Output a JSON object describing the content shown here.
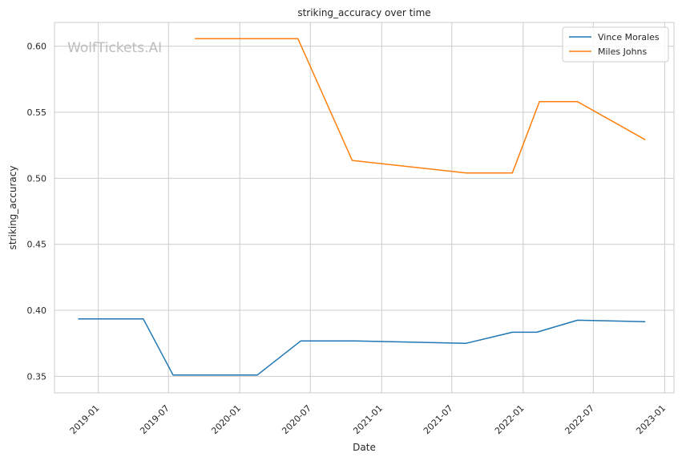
{
  "chart_data": {
    "type": "line",
    "title": "striking_accuracy over time",
    "xlabel": "Date",
    "ylabel": "striking_accuracy",
    "watermark": "WolfTickets.AI",
    "x_ticks": [
      "2019-01",
      "2019-07",
      "2020-01",
      "2020-07",
      "2021-01",
      "2021-07",
      "2022-01",
      "2022-07",
      "2023-01"
    ],
    "y_ticks": [
      "0.35",
      "0.40",
      "0.45",
      "0.50",
      "0.55",
      "0.60"
    ],
    "xlim": [
      "2018-09-10",
      "2023-01-25"
    ],
    "ylim": [
      0.3375,
      0.618
    ],
    "grid": true,
    "legend_position": "top-right",
    "series": [
      {
        "name": "Vince Morales",
        "color": "#1f77b4",
        "points": [
          {
            "x": "2018-11-10",
            "y": 0.3935
          },
          {
            "x": "2019-04-27",
            "y": 0.3935
          },
          {
            "x": "2019-07-13",
            "y": 0.351
          },
          {
            "x": "2020-02-15",
            "y": 0.351
          },
          {
            "x": "2020-06-06",
            "y": 0.3768
          },
          {
            "x": "2020-10-24",
            "y": 0.3768
          },
          {
            "x": "2021-08-07",
            "y": 0.375
          },
          {
            "x": "2021-12-04",
            "y": 0.3834
          },
          {
            "x": "2022-02-05",
            "y": 0.3834
          },
          {
            "x": "2022-05-21",
            "y": 0.3925
          },
          {
            "x": "2022-11-12",
            "y": 0.3914
          }
        ]
      },
      {
        "name": "Miles Johns",
        "color": "#ff7f0e",
        "points": [
          {
            "x": "2019-09-07",
            "y": 0.6057
          },
          {
            "x": "2020-05-30",
            "y": 0.6057
          },
          {
            "x": "2020-10-17",
            "y": 0.5135
          },
          {
            "x": "2021-08-07",
            "y": 0.504
          },
          {
            "x": "2021-12-04",
            "y": 0.504
          },
          {
            "x": "2022-02-12",
            "y": 0.558
          },
          {
            "x": "2022-05-21",
            "y": 0.558
          },
          {
            "x": "2022-11-12",
            "y": 0.5292
          }
        ]
      }
    ]
  }
}
